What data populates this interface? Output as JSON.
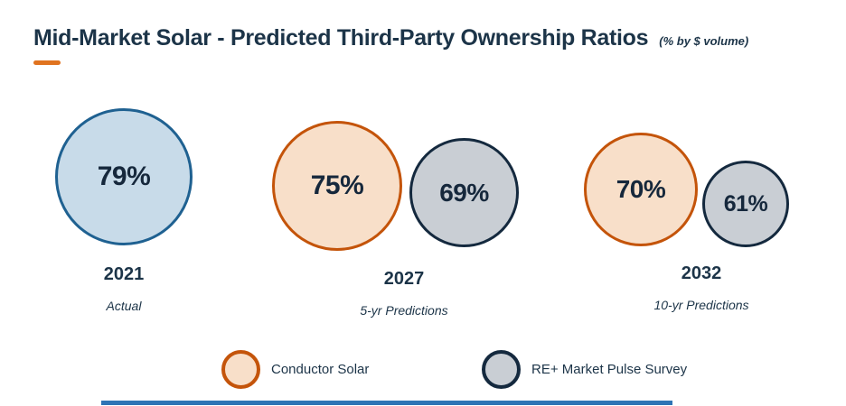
{
  "header": {
    "title": "Mid-Market Solar - Predicted Third-Party Ownership Ratios",
    "subtitle": "(% by $ volume)"
  },
  "colors": {
    "title_text": "#1c3448",
    "accent_dash": "#e0731f",
    "blue_fill": "#c8dbe9",
    "blue_border": "#1f6191",
    "orange_fill": "#f8dfc9",
    "orange_border": "#c4540a",
    "gray_fill": "#c9ced4",
    "gray_border": "#14293e",
    "footer_bar": "#2e74b5"
  },
  "chart_data": {
    "type": "bubble",
    "title": "Mid-Market Solar - Predicted Third-Party Ownership Ratios",
    "unit": "% by $ volume",
    "legend_position": "bottom",
    "groups": [
      {
        "year": "2021",
        "caption": "Actual",
        "bubbles": [
          {
            "series": "Actual",
            "value": 79,
            "label": "79%",
            "color": "blue"
          }
        ]
      },
      {
        "year": "2027",
        "caption": "5-yr Predictions",
        "bubbles": [
          {
            "series": "Conductor Solar",
            "value": 75,
            "label": "75%",
            "color": "orange"
          },
          {
            "series": "RE+ Market Pulse Survey",
            "value": 69,
            "label": "69%",
            "color": "gray"
          }
        ]
      },
      {
        "year": "2032",
        "caption": "10-yr Predictions",
        "bubbles": [
          {
            "series": "Conductor Solar",
            "value": 70,
            "label": "70%",
            "color": "orange"
          },
          {
            "series": "RE+ Market Pulse Survey",
            "value": 61,
            "label": "61%",
            "color": "gray"
          }
        ]
      }
    ],
    "legend": [
      {
        "label": "Conductor Solar",
        "color": "orange"
      },
      {
        "label": "RE+ Market Pulse Survey",
        "color": "gray"
      }
    ]
  }
}
